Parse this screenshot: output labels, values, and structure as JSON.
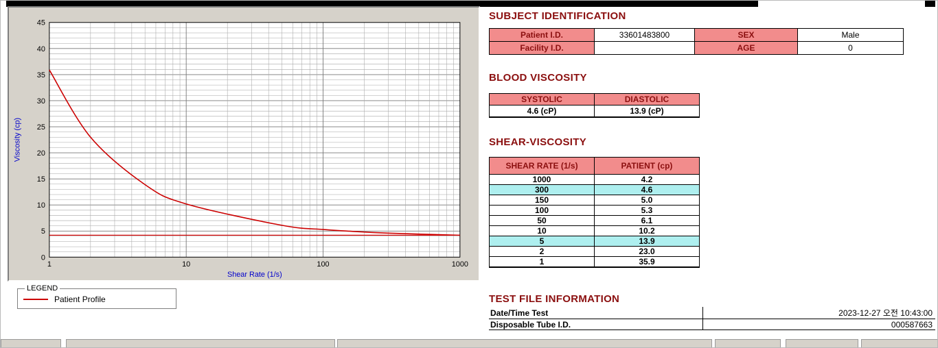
{
  "subject": {
    "title": "SUBJECT IDENTIFICATION",
    "rows": [
      {
        "label1": "Patient I.D.",
        "value1": "33601483800",
        "label2": "SEX",
        "value2": "Male"
      },
      {
        "label1": "Facility I.D.",
        "value1": "",
        "label2": "AGE",
        "value2": "0"
      }
    ]
  },
  "blood_viscosity": {
    "title": "BLOOD VISCOSITY",
    "headers": [
      "SYSTOLIC",
      "DIASTOLIC"
    ],
    "values": [
      "4.6 (cP)",
      "13.9 (cP)"
    ]
  },
  "shear_viscosity": {
    "title": "SHEAR-VISCOSITY",
    "headers": [
      "SHEAR RATE (1/s)",
      "PATIENT (cp)"
    ],
    "rows": [
      {
        "shear": "1000",
        "patient": "4.2",
        "highlight": false
      },
      {
        "shear": "300",
        "patient": "4.6",
        "highlight": true
      },
      {
        "shear": "150",
        "patient": "5.0",
        "highlight": false
      },
      {
        "shear": "100",
        "patient": "5.3",
        "highlight": false
      },
      {
        "shear": "50",
        "patient": "6.1",
        "highlight": false
      },
      {
        "shear": "10",
        "patient": "10.2",
        "highlight": false
      },
      {
        "shear": "5",
        "patient": "13.9",
        "highlight": true
      },
      {
        "shear": "2",
        "patient": "23.0",
        "highlight": false
      },
      {
        "shear": "1",
        "patient": "35.9",
        "highlight": false
      }
    ]
  },
  "test_file": {
    "title": "TEST FILE INFORMATION",
    "rows": [
      {
        "label": "Date/Time Test",
        "value": "2023-12-27  오전 10:43:00"
      },
      {
        "label": "Disposable Tube I.D.",
        "value": "000587663"
      }
    ]
  },
  "legend": {
    "box_label": "LEGEND",
    "series_label": "Patient Profile"
  },
  "chart_data": {
    "type": "line",
    "title": "",
    "xlabel": "Shear Rate (1/s)",
    "ylabel": "Viscosity (cp)",
    "xscale": "log",
    "xlim": [
      1,
      1000
    ],
    "ylim": [
      0,
      45
    ],
    "xticks": [
      1,
      10,
      100,
      1000
    ],
    "yticks": [
      0,
      5,
      10,
      15,
      20,
      25,
      30,
      35,
      40,
      45
    ],
    "grid": true,
    "x": [
      1,
      2,
      5,
      10,
      50,
      100,
      150,
      300,
      1000
    ],
    "series": [
      {
        "name": "Patient Profile",
        "values": [
          35.9,
          23.0,
          13.9,
          10.2,
          6.1,
          5.3,
          5.0,
          4.6,
          4.2
        ]
      }
    ],
    "baseline": 4.2,
    "line_color": "#cc0000",
    "axis_label_color": "#0000cc"
  },
  "colors": {
    "section_header_text": "#8b0f0f",
    "table_header_bg": "#f28c8c",
    "highlight_row_bg": "#aeefef",
    "curve": "#cc0000",
    "axis_label": "#0000cc",
    "panel_bg": "#d6d2ca"
  }
}
